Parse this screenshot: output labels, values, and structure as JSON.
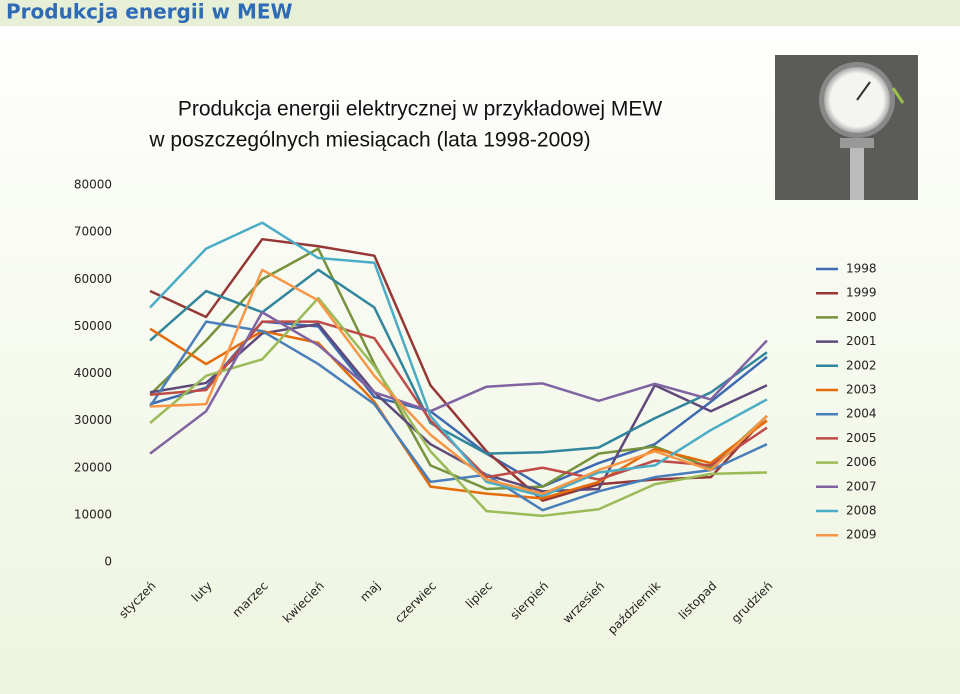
{
  "header": {
    "title": "Produkcja energii w MEW"
  },
  "chart_data": {
    "type": "line",
    "title": [
      "Produkcja energii elektrycznej w przykładowej MEW",
      "w poszczególnych miesiącach (lata 1998-2009)"
    ],
    "categories": [
      "styczeń",
      "luty",
      "marzec",
      "kwiecień",
      "maj",
      "czerwiec",
      "lipiec",
      "sierpień",
      "wrzesień",
      "październik",
      "listopad",
      "grudzień"
    ],
    "ylim": [
      0,
      80000
    ],
    "yticks": [
      0,
      10000,
      20000,
      30000,
      40000,
      50000,
      60000,
      70000,
      80000
    ],
    "grid": false,
    "legend": "right",
    "series": [
      {
        "name": "1998",
        "color": "#3d6ab0",
        "values": [
          33500,
          37000,
          51000,
          50000,
          35000,
          32000,
          23000,
          16000,
          21000,
          25000,
          34000,
          43500
        ]
      },
      {
        "name": "1999",
        "color": "#953735",
        "values": [
          57500,
          52000,
          68500,
          67000,
          65000,
          37500,
          23500,
          13000,
          16500,
          17500,
          18000,
          31000
        ]
      },
      {
        "name": "2000",
        "color": "#76923c",
        "values": [
          35500,
          47000,
          60000,
          66500,
          42000,
          20500,
          15500,
          16000,
          23000,
          24500,
          20000,
          31000
        ]
      },
      {
        "name": "2001",
        "color": "#5f497a",
        "values": [
          36000,
          38000,
          48500,
          50500,
          36000,
          25000,
          18500,
          15000,
          15500,
          37500,
          32000,
          37500
        ]
      },
      {
        "name": "2002",
        "color": "#31859c",
        "values": [
          47000,
          57500,
          53000,
          62000,
          54000,
          29500,
          23000,
          23300,
          24300,
          30500,
          36000,
          44500
        ]
      },
      {
        "name": "2003",
        "color": "#e46c0a",
        "values": [
          49500,
          42000,
          49000,
          46500,
          34000,
          16000,
          14500,
          13500,
          17000,
          24000,
          21000,
          30000
        ]
      },
      {
        "name": "2004",
        "color": "#4a7ebb",
        "values": [
          33000,
          51000,
          49000,
          42000,
          33500,
          17000,
          18500,
          11000,
          15000,
          18000,
          19500,
          25000
        ]
      },
      {
        "name": "2005",
        "color": "#be4b48",
        "values": [
          35500,
          36500,
          51000,
          51000,
          47500,
          30000,
          18000,
          20000,
          17500,
          21500,
          20500,
          28500
        ]
      },
      {
        "name": "2006",
        "color": "#9bbb59",
        "values": [
          29500,
          39500,
          43000,
          56000,
          41500,
          23500,
          10800,
          9800,
          11200,
          16500,
          18700,
          19000
        ]
      },
      {
        "name": "2007",
        "color": "#8064a2",
        "values": [
          23000,
          32000,
          53000,
          46000,
          36000,
          32000,
          37200,
          37900,
          34200,
          37800,
          34500,
          47000
        ]
      },
      {
        "name": "2008",
        "color": "#4bacc6",
        "values": [
          54000,
          66500,
          72000,
          64500,
          63500,
          31000,
          17000,
          14000,
          19000,
          20500,
          28000,
          34500
        ]
      },
      {
        "name": "2009",
        "color": "#f79646",
        "values": [
          33000,
          33500,
          62000,
          55500,
          39500,
          27000,
          17500,
          14500,
          19500,
          23500,
          19500,
          31000
        ]
      }
    ]
  }
}
